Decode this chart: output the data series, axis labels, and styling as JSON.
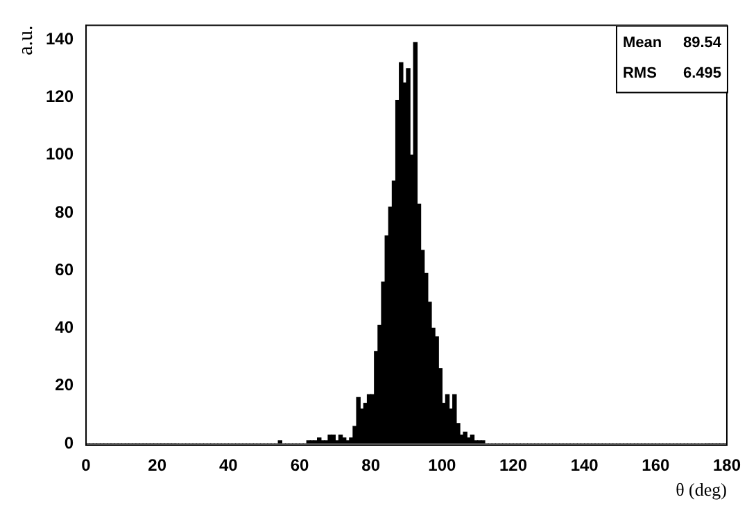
{
  "chart_data": {
    "type": "histogram",
    "xlabel": "θ (deg)",
    "ylabel": "a.u.",
    "color": "#000000",
    "bins": [
      0,
      1,
      2,
      3,
      4,
      5,
      6,
      7,
      8,
      9,
      10,
      11,
      12,
      13,
      14,
      15,
      16,
      17,
      18,
      19,
      20,
      21,
      22,
      23,
      24,
      25,
      26,
      27,
      28,
      29,
      30,
      31,
      32,
      33,
      34,
      35,
      36,
      37,
      38,
      39,
      40,
      41,
      42,
      43,
      44,
      45,
      46,
      47,
      48,
      49,
      50,
      51,
      52,
      53,
      54,
      55,
      56,
      57,
      58,
      59,
      60,
      61,
      62,
      63,
      64,
      65,
      66,
      67,
      68,
      69,
      70,
      71,
      72,
      73,
      74,
      75,
      76,
      77,
      78,
      79,
      80,
      81,
      82,
      83,
      84,
      85,
      86,
      87,
      88,
      89,
      90,
      91,
      92,
      93,
      94,
      95,
      96,
      97,
      98,
      99,
      100,
      101,
      102,
      103,
      104,
      105,
      106,
      107,
      108,
      109,
      110,
      111,
      112,
      113,
      114,
      115,
      116,
      117,
      118,
      119,
      120,
      121,
      122,
      123,
      124,
      125,
      126,
      127,
      128,
      129,
      130,
      131,
      132,
      133,
      134,
      135,
      136,
      137,
      138,
      139,
      140,
      141,
      142,
      143,
      144,
      145,
      146,
      147,
      148,
      149,
      150,
      151,
      152,
      153,
      154,
      155,
      156,
      157,
      158,
      159,
      160,
      161,
      162,
      163,
      164,
      165,
      166,
      167,
      168,
      169,
      170,
      171,
      172,
      173,
      174,
      175,
      176,
      177,
      178,
      179,
      180
    ],
    "values": [
      0,
      0,
      0,
      0,
      0,
      0,
      0,
      0,
      0,
      0,
      0,
      0,
      0,
      0,
      0,
      0,
      0,
      0,
      0,
      0,
      0,
      0,
      0,
      0,
      0,
      0,
      0,
      0,
      0,
      0,
      0,
      0,
      0,
      0,
      0,
      0,
      0,
      0,
      0,
      0,
      0,
      0,
      0,
      0,
      0,
      0,
      0,
      0,
      0,
      0,
      0,
      0,
      0,
      0,
      1,
      0,
      0,
      0,
      0,
      0,
      0,
      0,
      1,
      1,
      1,
      2,
      1,
      1,
      3,
      3,
      1,
      3,
      2,
      1,
      2,
      6,
      16,
      12,
      14,
      17,
      17,
      32,
      41,
      56,
      72,
      82,
      91,
      119,
      132,
      125,
      130,
      100,
      139,
      83,
      67,
      59,
      49,
      40,
      37,
      26,
      14,
      17,
      12,
      17,
      7,
      3,
      4,
      2,
      3,
      1,
      1,
      1,
      0,
      0,
      0,
      0,
      0,
      0,
      0,
      0,
      0,
      0,
      0,
      0,
      0,
      0,
      0,
      0,
      0,
      0,
      0,
      0,
      0,
      0,
      0,
      0,
      0,
      0,
      0,
      0,
      0,
      0,
      0,
      0,
      0,
      0,
      0,
      0,
      0,
      0,
      0,
      0,
      0,
      0,
      0,
      0,
      0,
      0,
      0,
      0,
      0,
      0,
      0,
      0,
      0,
      0,
      0,
      0,
      0,
      0,
      0,
      0,
      0,
      0,
      0,
      0,
      0,
      0,
      0,
      0
    ],
    "xlim": [
      0,
      180
    ],
    "xticks": [
      0,
      20,
      40,
      60,
      80,
      100,
      120,
      140,
      160,
      180
    ],
    "ylim": [
      0,
      145
    ],
    "yticks": [
      0,
      20,
      40,
      60,
      80,
      100,
      120,
      140
    ],
    "grid": false,
    "legend": false,
    "annotations": [
      "Mean  89.54",
      "RMS   6.495"
    ]
  }
}
